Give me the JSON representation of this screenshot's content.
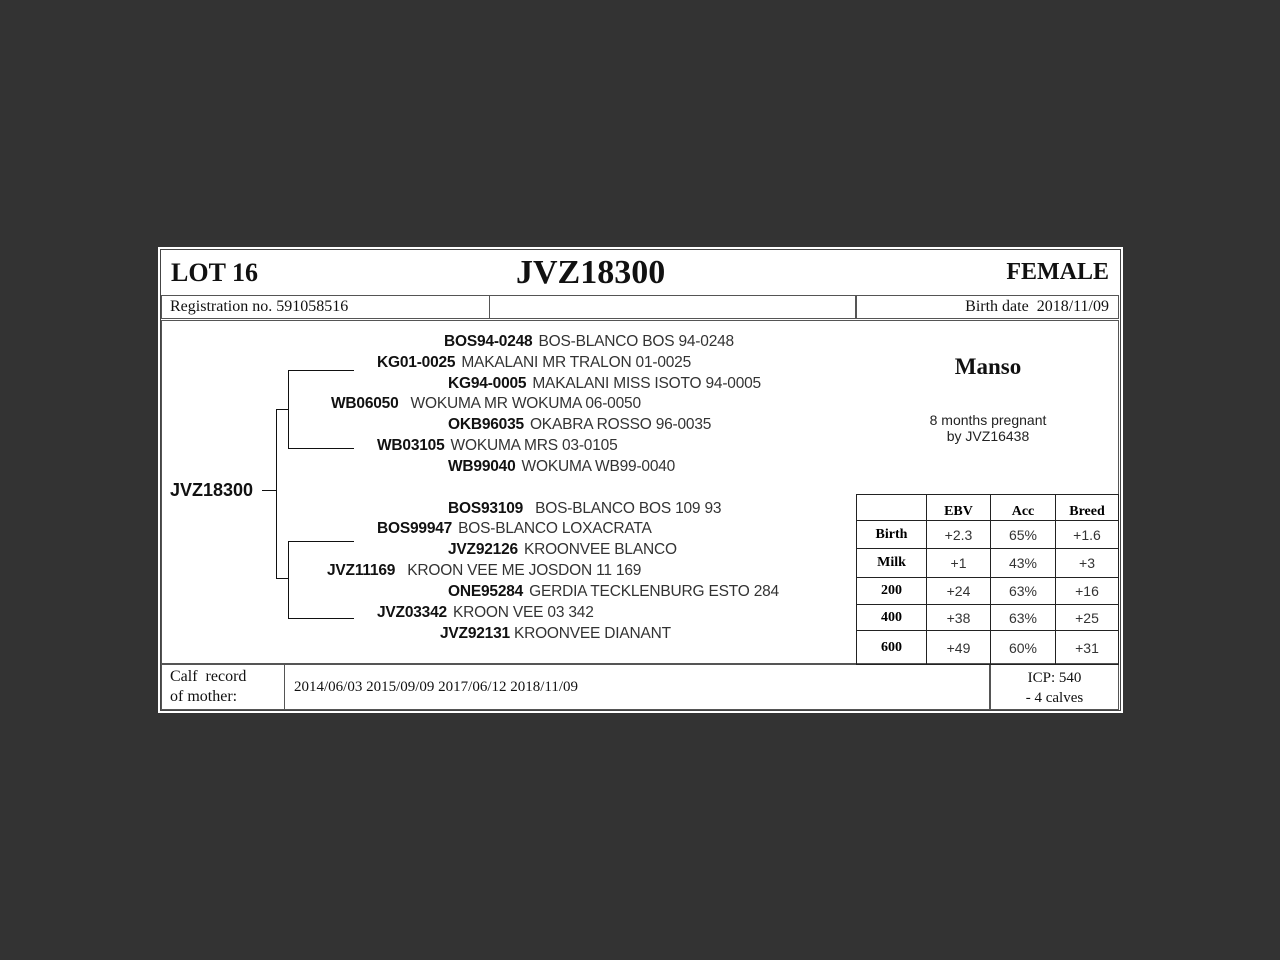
{
  "header": {
    "lot": "LOT 16",
    "id": "JVZ18300",
    "sex": "FEMALE"
  },
  "info": {
    "registration": "Registration no. 591058516",
    "birth_date": "Birth date  2018/11/09"
  },
  "animal": {
    "id": "JVZ18300",
    "name": "Manso",
    "note_line1": "8 months pregnant",
    "note_line2": "by JVZ16438"
  },
  "pedigree": [
    {
      "id": "BOS94-0248",
      "name": "BOS-BLANCO BOS 94-0248"
    },
    {
      "id": "KG01-0025",
      "name": "MAKALANI MR TRALON 01-0025"
    },
    {
      "id": "KG94-0005",
      "name": "MAKALANI MISS ISOTO 94-0005"
    },
    {
      "id": "WB06050",
      "name": "WOKUMA MR WOKUMA 06-0050"
    },
    {
      "id": "OKB96035",
      "name": "OKABRA ROSSO 96-0035"
    },
    {
      "id": "WB03105",
      "name": "WOKUMA MRS 03-0105"
    },
    {
      "id": "WB99040",
      "name": "WOKUMA WB99-0040"
    },
    {
      "id": "BOS93109",
      "name": "BOS-BLANCO BOS 109 93"
    },
    {
      "id": "BOS99947",
      "name": "BOS-BLANCO LOXACRATA"
    },
    {
      "id": "JVZ92126",
      "name": "KROONVEE BLANCO"
    },
    {
      "id": "JVZ11169",
      "name": "KROON VEE ME JOSDON 11 169"
    },
    {
      "id": "ONE95284",
      "name": "GERDIA TECKLENBURG ESTO 284"
    },
    {
      "id": "JVZ03342",
      "name": "KROON VEE 03 342"
    },
    {
      "id": "JVZ92131",
      "name": "KROONVEE DIANANT"
    }
  ],
  "ebv": {
    "headers": [
      "",
      "EBV",
      "Acc",
      "Breed"
    ],
    "rows": [
      [
        "Birth",
        "+2.3",
        "65%",
        "+1.6"
      ],
      [
        "Milk",
        "+1",
        "43%",
        "+3"
      ],
      [
        "200",
        "+24",
        "63%",
        "+16"
      ],
      [
        "400",
        "+38",
        "63%",
        "+25"
      ],
      [
        "600",
        "+49",
        "60%",
        "+31"
      ]
    ]
  },
  "calf": {
    "label_line1": "Calf  record",
    "label_line2": "of mother:",
    "dates": "2014/06/03 2015/09/09 2017/06/12 2018/11/09",
    "icp": "ICP: 540",
    "calves": "- 4 calves"
  }
}
